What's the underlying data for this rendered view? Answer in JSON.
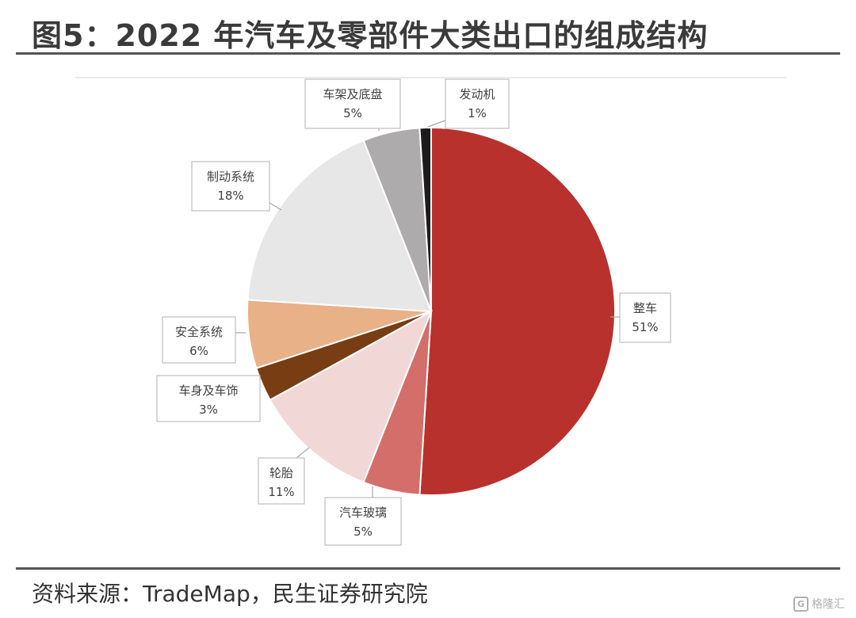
{
  "title": "图5：2022 年汽车及零部件大类出口的组成结构",
  "source": "资料来源：TradeMap，民生证券研究院",
  "watermark": {
    "text": "格隆汇",
    "mark": "G"
  },
  "colors": {
    "整车": "#b8312d",
    "汽车玻璃": "#d46e6a",
    "轮胎": "#f1d8d7",
    "车身及车饰": "#783d12",
    "安全系统": "#e9b187",
    "制动系统": "#e8e7e7",
    "车架及底盘": "#adabab",
    "发动机": "#1c1c1c"
  },
  "chart_data": {
    "type": "pie",
    "title": "",
    "categories": [
      "整车",
      "汽车玻璃",
      "轮胎",
      "车身及车饰",
      "安全系统",
      "制动系统",
      "车架及底盘",
      "发动机"
    ],
    "values": [
      51,
      5,
      11,
      3,
      6,
      18,
      5,
      1
    ],
    "labels": [
      "51%",
      "5%",
      "11%",
      "3%",
      "6%",
      "18%",
      "5%",
      "1%"
    ],
    "start": "12 o'clock",
    "direction": "clockwise",
    "legend": "none (callout labels)"
  }
}
